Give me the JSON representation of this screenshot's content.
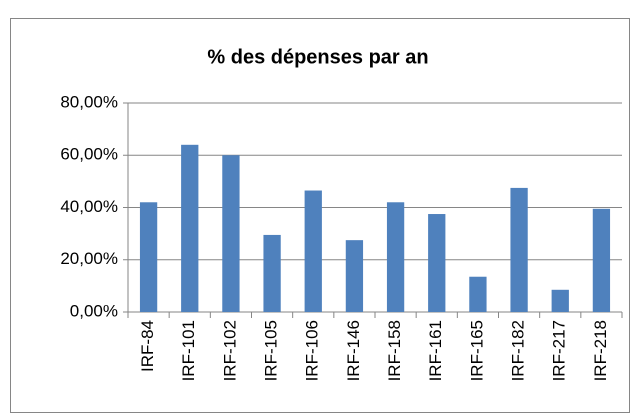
{
  "chart_data": {
    "type": "bar",
    "title": "% des dépenses par an",
    "categories": [
      "IRF-84",
      "IRF-101",
      "IRF-102",
      "IRF-105",
      "IRF-106",
      "IRF-146",
      "IRF-158",
      "IRF-161",
      "IRF-165",
      "IRF-182",
      "IRF-217",
      "IRF-218"
    ],
    "values": [
      42,
      64,
      60,
      29.5,
      46.5,
      27.5,
      42,
      37.5,
      13.5,
      47.5,
      8.5,
      39.5
    ],
    "color": "#4f81bd",
    "ylim": [
      0,
      80
    ],
    "yticks": [
      {
        "value": 0,
        "label": "0,00%"
      },
      {
        "value": 20,
        "label": "20,00%"
      },
      {
        "value": 40,
        "label": "40,00%"
      },
      {
        "value": 60,
        "label": "60,00%"
      },
      {
        "value": 80,
        "label": "80,00%"
      }
    ],
    "grid": true
  }
}
